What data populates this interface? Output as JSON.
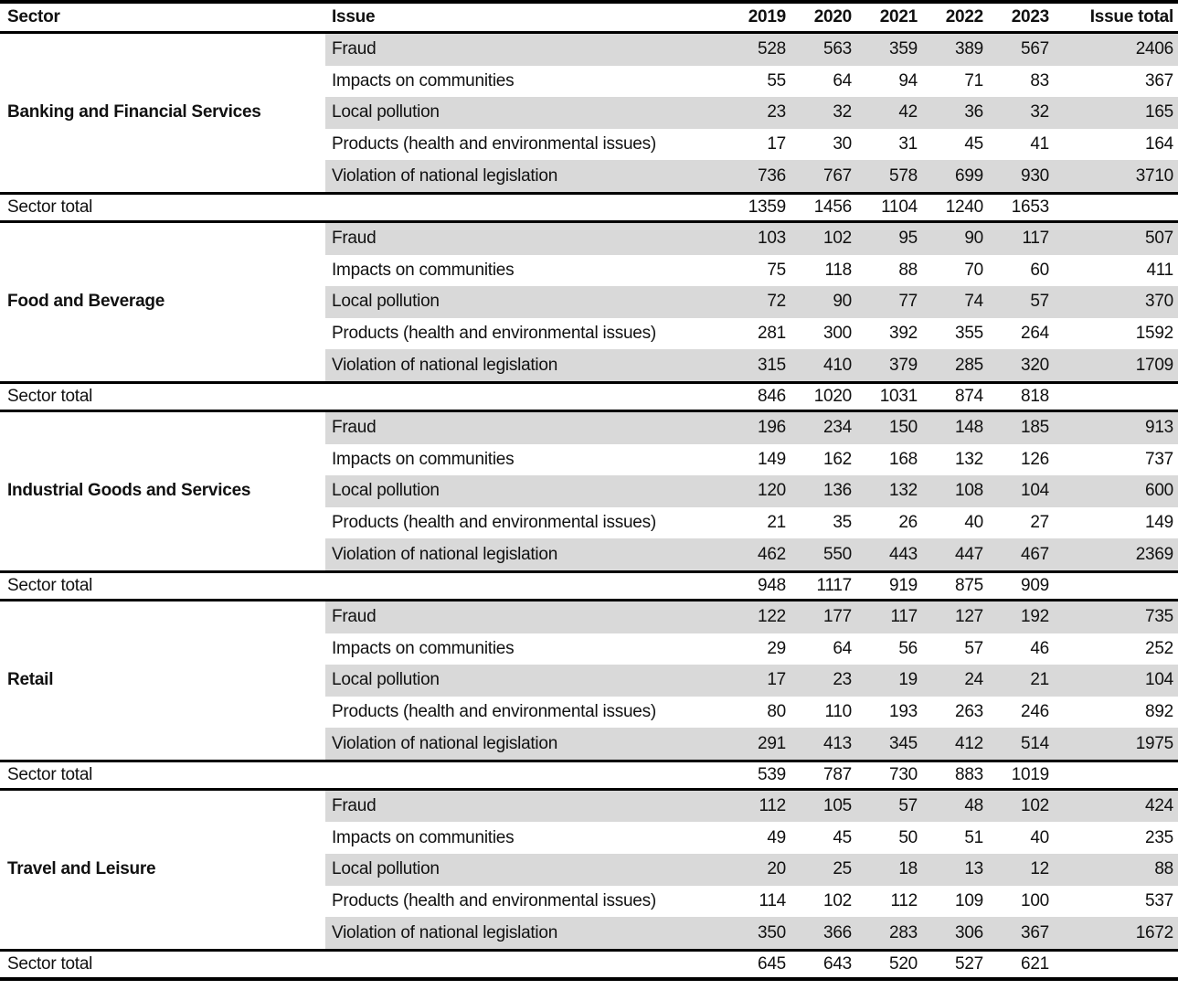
{
  "chart_data": {
    "type": "table",
    "columns": [
      "Sector",
      "Issue",
      "2019",
      "2020",
      "2021",
      "2022",
      "2023",
      "Issue total"
    ],
    "sector_total_label": "Sector total",
    "sectors": [
      {
        "name": "Banking and Financial Services",
        "issues": [
          {
            "label": "Fraud",
            "values": [
              528,
              563,
              359,
              389,
              567
            ],
            "total": 2406
          },
          {
            "label": "Impacts on communities",
            "values": [
              55,
              64,
              94,
              71,
              83
            ],
            "total": 367
          },
          {
            "label": "Local pollution",
            "values": [
              23,
              32,
              42,
              36,
              32
            ],
            "total": 165
          },
          {
            "label": "Products (health and environmental issues)",
            "values": [
              17,
              30,
              31,
              45,
              41
            ],
            "total": 164
          },
          {
            "label": "Violation of national legislation",
            "values": [
              736,
              767,
              578,
              699,
              930
            ],
            "total": 3710
          }
        ],
        "sector_totals": [
          1359,
          1456,
          1104,
          1240,
          1653
        ]
      },
      {
        "name": "Food and Beverage",
        "issues": [
          {
            "label": "Fraud",
            "values": [
              103,
              102,
              95,
              90,
              117
            ],
            "total": 507
          },
          {
            "label": "Impacts on communities",
            "values": [
              75,
              118,
              88,
              70,
              60
            ],
            "total": 411
          },
          {
            "label": "Local pollution",
            "values": [
              72,
              90,
              77,
              74,
              57
            ],
            "total": 370
          },
          {
            "label": "Products (health and environmental issues)",
            "values": [
              281,
              300,
              392,
              355,
              264
            ],
            "total": 1592
          },
          {
            "label": "Violation of national legislation",
            "values": [
              315,
              410,
              379,
              285,
              320
            ],
            "total": 1709
          }
        ],
        "sector_totals": [
          846,
          1020,
          1031,
          874,
          818
        ]
      },
      {
        "name": "Industrial Goods and Services",
        "issues": [
          {
            "label": "Fraud",
            "values": [
              196,
              234,
              150,
              148,
              185
            ],
            "total": 913
          },
          {
            "label": "Impacts on communities",
            "values": [
              149,
              162,
              168,
              132,
              126
            ],
            "total": 737
          },
          {
            "label": "Local pollution",
            "values": [
              120,
              136,
              132,
              108,
              104
            ],
            "total": 600
          },
          {
            "label": "Products (health and environmental issues)",
            "values": [
              21,
              35,
              26,
              40,
              27
            ],
            "total": 149
          },
          {
            "label": "Violation of national legislation",
            "values": [
              462,
              550,
              443,
              447,
              467
            ],
            "total": 2369
          }
        ],
        "sector_totals": [
          948,
          1117,
          919,
          875,
          909
        ]
      },
      {
        "name": "Retail",
        "issues": [
          {
            "label": "Fraud",
            "values": [
              122,
              177,
              117,
              127,
              192
            ],
            "total": 735
          },
          {
            "label": "Impacts on communities",
            "values": [
              29,
              64,
              56,
              57,
              46
            ],
            "total": 252
          },
          {
            "label": "Local pollution",
            "values": [
              17,
              23,
              19,
              24,
              21
            ],
            "total": 104
          },
          {
            "label": "Products (health and environmental issues)",
            "values": [
              80,
              110,
              193,
              263,
              246
            ],
            "total": 892
          },
          {
            "label": "Violation of national legislation",
            "values": [
              291,
              413,
              345,
              412,
              514
            ],
            "total": 1975
          }
        ],
        "sector_totals": [
          539,
          787,
          730,
          883,
          1019
        ]
      },
      {
        "name": "Travel and Leisure",
        "issues": [
          {
            "label": "Fraud",
            "values": [
              112,
              105,
              57,
              48,
              102
            ],
            "total": 424
          },
          {
            "label": "Impacts on communities",
            "values": [
              49,
              45,
              50,
              51,
              40
            ],
            "total": 235
          },
          {
            "label": "Local pollution",
            "values": [
              20,
              25,
              18,
              13,
              12
            ],
            "total": 88
          },
          {
            "label": "Products (health and environmental issues)",
            "values": [
              114,
              102,
              112,
              109,
              100
            ],
            "total": 537
          },
          {
            "label": "Violation of national legislation",
            "values": [
              350,
              366,
              283,
              306,
              367
            ],
            "total": 1672
          }
        ],
        "sector_totals": [
          645,
          643,
          520,
          527,
          621
        ]
      }
    ]
  },
  "colors": {
    "row_shade": "#d9d9d9",
    "rule": "#000000",
    "text": "#111111"
  }
}
